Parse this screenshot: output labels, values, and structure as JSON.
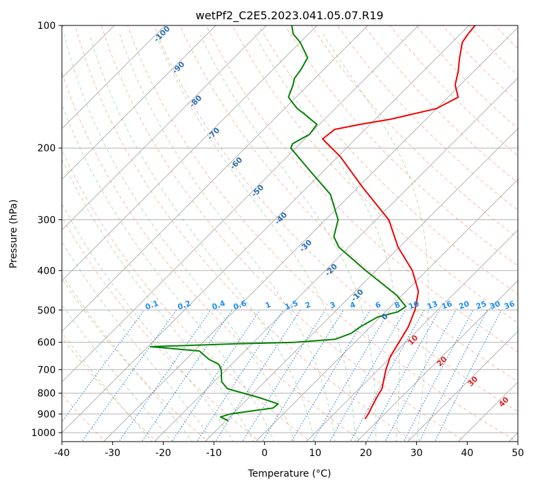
{
  "chart_data": {
    "type": "line",
    "subtype": "skew-T log-P sounding",
    "title": "wetPf2_C2E5.2023.041.05.07.R19",
    "xlabel": "Temperature (°C)",
    "ylabel": "Pressure (hPa)",
    "xlim": [
      -40,
      50
    ],
    "ylim": [
      1050,
      100
    ],
    "x_ticks": [
      "-40",
      "-30",
      "-20",
      "-10",
      "0",
      "10",
      "20",
      "30",
      "40",
      "50"
    ],
    "x_tick_values": [
      -40,
      -30,
      -20,
      -10,
      0,
      10,
      20,
      30,
      40,
      50
    ],
    "y_ticks": [
      "100",
      "200",
      "300",
      "400",
      "500",
      "600",
      "700",
      "800",
      "900",
      "1000"
    ],
    "y_tick_values": [
      100,
      200,
      300,
      400,
      500,
      600,
      700,
      800,
      900,
      1000
    ],
    "grid": true,
    "series": [
      {
        "name": "temperature",
        "color": "#ee0000",
        "points": [
          [
            925,
            17.1
          ],
          [
            900,
            16.8
          ],
          [
            870,
            16.2
          ],
          [
            820,
            15.2
          ],
          [
            780,
            14.5
          ],
          [
            700,
            11.5
          ],
          [
            650,
            9.8
          ],
          [
            600,
            8.7
          ],
          [
            550,
            7.5
          ],
          [
            500,
            5.5
          ],
          [
            450,
            2.5
          ],
          [
            400,
            -2.8
          ],
          [
            350,
            -10.3
          ],
          [
            300,
            -17.5
          ],
          [
            250,
            -29.0
          ],
          [
            210,
            -39.5
          ],
          [
            190,
            -46.5
          ],
          [
            180,
            -46.0
          ],
          [
            175,
            -42.0
          ],
          [
            170,
            -37.0
          ],
          [
            160,
            -30.0
          ],
          [
            150,
            -28.0
          ],
          [
            140,
            -31.0
          ],
          [
            130,
            -33.0
          ],
          [
            120,
            -35.5
          ],
          [
            110,
            -38.0
          ],
          [
            105,
            -38.5
          ],
          [
            100,
            -38.8
          ]
        ]
      },
      {
        "name": "dewpoint",
        "color": "#008000",
        "points": [
          [
            935,
            -9.5
          ],
          [
            915,
            -11.8
          ],
          [
            900,
            -10.5
          ],
          [
            870,
            -3.2
          ],
          [
            850,
            -3.0
          ],
          [
            820,
            -8.0
          ],
          [
            780,
            -16.0
          ],
          [
            750,
            -18.5
          ],
          [
            700,
            -21.0
          ],
          [
            680,
            -22.5
          ],
          [
            660,
            -25.5
          ],
          [
            630,
            -29.0
          ],
          [
            615,
            -39.5
          ],
          [
            605,
            -23.0
          ],
          [
            600,
            -12.0
          ],
          [
            590,
            -4.5
          ],
          [
            570,
            -2.5
          ],
          [
            550,
            -2.0
          ],
          [
            520,
            -0.5
          ],
          [
            505,
            2.5
          ],
          [
            490,
            3.0
          ],
          [
            460,
            -1.0
          ],
          [
            400,
            -12.0
          ],
          [
            350,
            -22.0
          ],
          [
            330,
            -25.0
          ],
          [
            300,
            -27.5
          ],
          [
            260,
            -34.0
          ],
          [
            230,
            -42.0
          ],
          [
            200,
            -51.0
          ],
          [
            195,
            -51.5
          ],
          [
            185,
            -50.0
          ],
          [
            175,
            -50.5
          ],
          [
            165,
            -55.0
          ],
          [
            160,
            -57.5
          ],
          [
            155,
            -59.5
          ],
          [
            150,
            -61.5
          ],
          [
            140,
            -63.0
          ],
          [
            135,
            -64.0
          ],
          [
            128,
            -64.5
          ],
          [
            120,
            -65.5
          ],
          [
            110,
            -70.0
          ],
          [
            105,
            -73.0
          ],
          [
            100,
            -75.0
          ]
        ]
      }
    ],
    "isotherm_labels": [
      "-100",
      "-90",
      "-80",
      "-70",
      "-60",
      "-50",
      "-40",
      "-30",
      "-20",
      "-10",
      "0",
      "10",
      "20",
      "30",
      "40"
    ],
    "mixing_ratio_labels": [
      "0.1",
      "0.2",
      "0.4",
      "0.6",
      "1",
      "1.5",
      "2",
      "3",
      "4",
      "6",
      "8",
      "10",
      "13",
      "16",
      "20",
      "25",
      "30",
      "36"
    ],
    "colors": {
      "isotherm": "#b3b3b3",
      "dry_adiabat": "#f08060",
      "moist_adiabat": "#70b870",
      "mixing_ratio": "#1f78d4",
      "hot_label": "#d62728"
    }
  }
}
